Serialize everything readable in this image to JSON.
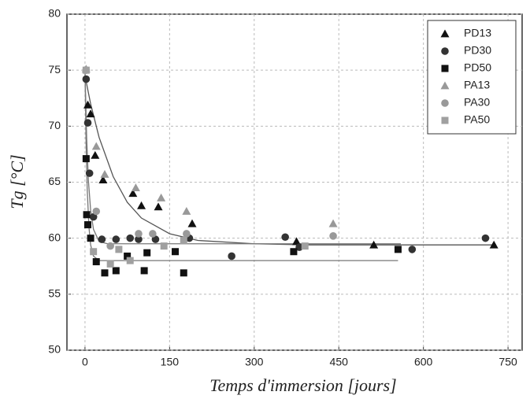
{
  "chart_data": {
    "type": "scatter",
    "x_label": "Temps d'immersion [jours]",
    "y_label": "Tg [°C]",
    "xlim": [
      -32,
      775
    ],
    "ylim": [
      50,
      80
    ],
    "xticks": [
      0,
      150,
      300,
      450,
      600,
      750
    ],
    "yticks": [
      50,
      55,
      60,
      65,
      70,
      75,
      80
    ],
    "grid": true,
    "legend": "upper right",
    "series": [
      {
        "name": "PD13",
        "color": "#111111",
        "marker": "triangle",
        "x": [
          5,
          10,
          18,
          32,
          85,
          100,
          130,
          190,
          375,
          512,
          725
        ],
        "values": [
          71.9,
          71.1,
          67.4,
          65.2,
          64,
          62.9,
          62.8,
          61.3,
          59.7,
          59.4,
          59.4
        ]
      },
      {
        "name": "PD30",
        "color": "#333333",
        "marker": "circle",
        "x": [
          2,
          5,
          8,
          15,
          30,
          55,
          80,
          95,
          125,
          185,
          260,
          355,
          380,
          580,
          710
        ],
        "values": [
          74.2,
          70.3,
          65.8,
          61.9,
          59.9,
          59.9,
          60,
          59.9,
          59.9,
          60,
          58.4,
          60.1,
          59.2,
          59,
          60
        ]
      },
      {
        "name": "PD50",
        "color": "#111111",
        "marker": "square",
        "x": [
          2,
          3,
          5,
          10,
          20,
          35,
          55,
          75,
          105,
          110,
          160,
          175,
          370,
          555
        ],
        "values": [
          67.1,
          62.1,
          61.2,
          60,
          57.9,
          56.9,
          57.1,
          58.4,
          57.1,
          58.7,
          58.8,
          56.9,
          58.8,
          59
        ]
      },
      {
        "name": "PA13",
        "color": "#999999",
        "marker": "triangle",
        "x": [
          2,
          20,
          35,
          90,
          135,
          180,
          440
        ],
        "values": [
          75.1,
          68.2,
          65.7,
          64.5,
          63.6,
          62.4,
          61.3
        ]
      },
      {
        "name": "PA30",
        "color": "#999999",
        "marker": "circle",
        "x": [
          2,
          20,
          45,
          95,
          120,
          180,
          440
        ],
        "values": [
          75,
          62.4,
          59.3,
          60.4,
          60.4,
          60.4,
          60.2
        ]
      },
      {
        "name": "PA50",
        "color": "#a0a0a0",
        "marker": "square",
        "x": [
          2,
          15,
          45,
          60,
          80,
          140,
          175,
          390
        ],
        "values": [
          75,
          58.8,
          57.7,
          59,
          58,
          59.3,
          59.8,
          59.3
        ]
      }
    ],
    "fits": [
      {
        "color": "#555555",
        "x": [
          0,
          10,
          25,
          50,
          75,
          100,
          150,
          200,
          300,
          400,
          725
        ],
        "values": [
          74.5,
          72,
          69,
          65.5,
          63.2,
          61.8,
          60.4,
          59.8,
          59.5,
          59.4,
          59.4
        ]
      },
      {
        "color": "#777777",
        "x": [
          0,
          3,
          6,
          10,
          15,
          25,
          40,
          60,
          560
        ],
        "values": [
          75,
          68.9,
          65.2,
          62.5,
          60.8,
          59.7,
          59.5,
          59.5,
          59.5
        ]
      },
      {
        "color": "#777777",
        "x": [
          0,
          2,
          4,
          7,
          10,
          15,
          25,
          555
        ],
        "values": [
          75,
          68.3,
          64.3,
          61,
          59.4,
          58.4,
          58,
          58
        ]
      }
    ]
  }
}
